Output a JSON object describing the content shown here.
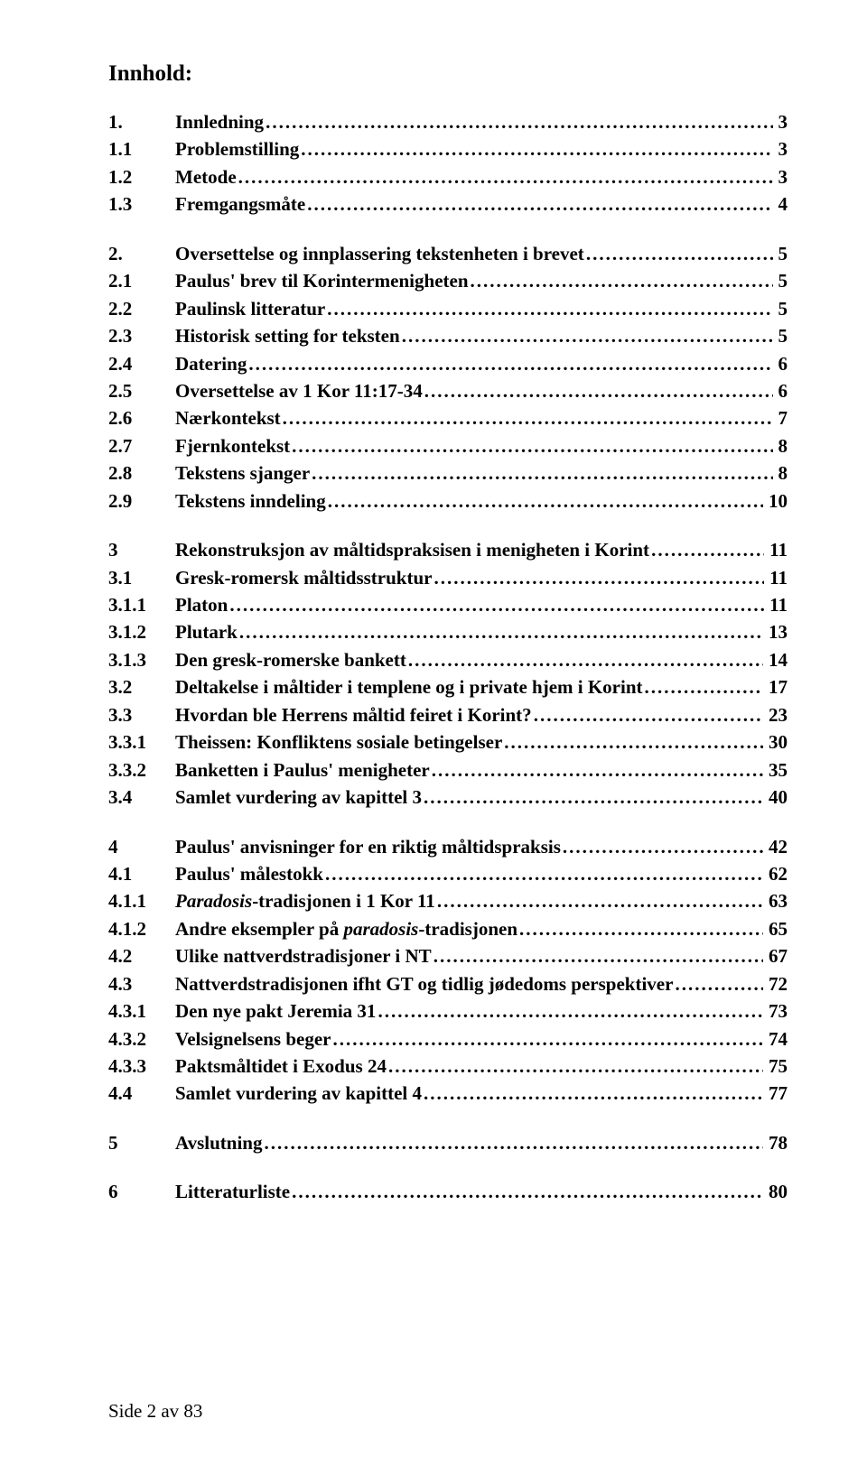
{
  "title": "Innhold:",
  "footer": "Side 2 av 83",
  "sections": [
    {
      "rows": [
        {
          "num": "1.",
          "label": "Innledning",
          "page": "3"
        },
        {
          "num": "1.1",
          "label": "Problemstilling",
          "page": "3"
        },
        {
          "num": "1.2",
          "label": "Metode",
          "page": "3"
        },
        {
          "num": "1.3",
          "label": "Fremgangsmåte",
          "page": "4"
        }
      ]
    },
    {
      "rows": [
        {
          "num": "2.",
          "label": "Oversettelse og innplassering tekstenheten i brevet",
          "page": "5"
        },
        {
          "num": "2.1",
          "label": "Paulus' brev til Korintermenigheten",
          "page": "5"
        },
        {
          "num": "2.2",
          "label": "Paulinsk litteratur",
          "page": "5"
        },
        {
          "num": "2.3",
          "label": "Historisk setting for teksten",
          "page": "5"
        },
        {
          "num": "2.4",
          "label": "Datering",
          "page": "6"
        },
        {
          "num": "2.5",
          "label": "Oversettelse av 1 Kor 11:17-34",
          "page": "6"
        },
        {
          "num": "2.6",
          "label": "Nærkontekst",
          "page": "7"
        },
        {
          "num": "2.7",
          "label": "Fjernkontekst",
          "page": "8"
        },
        {
          "num": "2.8",
          "label": "Tekstens sjanger",
          "page": "8"
        },
        {
          "num": "2.9",
          "label": "Tekstens inndeling",
          "page": "10"
        }
      ]
    },
    {
      "rows": [
        {
          "num": "3",
          "label": "Rekonstruksjon av måltidspraksisen i menigheten i Korint",
          "page": "11"
        },
        {
          "num": "3.1",
          "label": "Gresk-romersk måltidsstruktur",
          "page": "11"
        },
        {
          "num": "3.1.1",
          "label": "Platon",
          "page": "11"
        },
        {
          "num": "3.1.2",
          "label": "Plutark",
          "page": "13"
        },
        {
          "num": "3.1.3",
          "label": "Den gresk-romerske bankett",
          "page": "14"
        },
        {
          "num": "3.2",
          "label": "Deltakelse i måltider i templene og i private hjem i Korint",
          "page": "17"
        },
        {
          "num": "3.3",
          "label": "Hvordan ble Herrens måltid feiret i Korint?",
          "page": "23"
        },
        {
          "num": "3.3.1",
          "label": "Theissen: Konfliktens sosiale betingelser",
          "page": "30"
        },
        {
          "num": "3.3.2",
          "label": "Banketten i Paulus' menigheter",
          "page": "35"
        },
        {
          "num": "3.4",
          "label": "Samlet vurdering av kapittel 3",
          "page": "40"
        }
      ]
    },
    {
      "rows": [
        {
          "num": "4",
          "label": "Paulus' anvisninger for en riktig måltidspraksis",
          "page": "42"
        },
        {
          "num": "4.1",
          "label": "Paulus' målestokk",
          "page": "62"
        },
        {
          "num": "4.1.1",
          "labelHtml": "<span class='italic'>Paradosis</span>-tradisjonen i 1 Kor 11",
          "page": "63"
        },
        {
          "num": "4.1.2",
          "labelHtml": "Andre eksempler på <span class='italic'>paradosis</span>-tradisjonen",
          "page": "65"
        },
        {
          "num": "4.2",
          "label": "Ulike nattverdstradisjoner i NT",
          "page": "67"
        },
        {
          "num": "4.3",
          "label": "Nattverdstradisjonen ifht GT og tidlig jødedoms perspektiver",
          "page": "72"
        },
        {
          "num": "4.3.1",
          "label": "Den nye pakt Jeremia 31",
          "page": "73"
        },
        {
          "num": "4.3.2",
          "label": "Velsignelsens beger",
          "page": "74"
        },
        {
          "num": "4.3.3",
          "label": "Paktsmåltidet i Exodus 24",
          "page": "75"
        },
        {
          "num": "4.4",
          "label": "Samlet vurdering av kapittel 4",
          "page": "77"
        }
      ]
    },
    {
      "rows": [
        {
          "num": "5",
          "label": "Avslutning",
          "page": "78"
        }
      ]
    },
    {
      "rows": [
        {
          "num": "6",
          "label": "Litteraturliste",
          "page": "80"
        }
      ]
    }
  ]
}
